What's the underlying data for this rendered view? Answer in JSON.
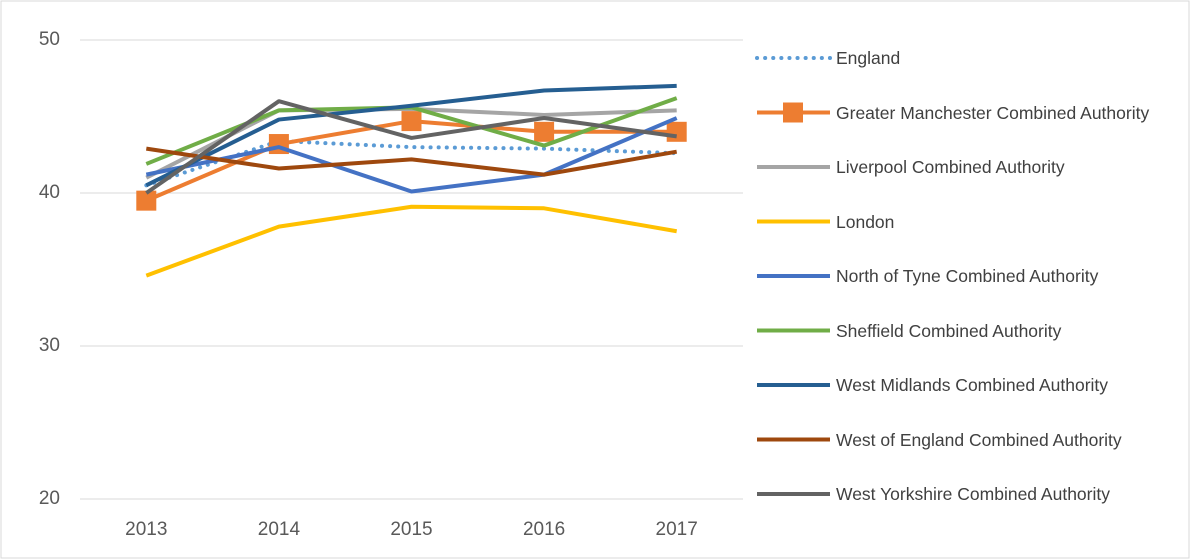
{
  "chart_data": {
    "type": "line",
    "categories": [
      "2013",
      "2014",
      "2015",
      "2016",
      "2017"
    ],
    "ylim": [
      20,
      50
    ],
    "yticks": [
      20,
      30,
      40,
      50
    ],
    "grid": true,
    "legend": "right",
    "series": [
      {
        "name": "England",
        "color": "#5b9bd5",
        "line_style": "dotted",
        "values": [
          40.5,
          43.4,
          43.0,
          42.9,
          42.6
        ]
      },
      {
        "name": "Greater Manchester Combined Authority",
        "color": "#ed7d31",
        "marker": "square",
        "values": [
          39.5,
          43.2,
          44.7,
          44.0,
          44.0
        ]
      },
      {
        "name": "Liverpool Combined Authority",
        "color": "#a5a5a5",
        "values": [
          41.0,
          45.4,
          45.5,
          45.1,
          45.4
        ]
      },
      {
        "name": "London",
        "color": "#ffc000",
        "values": [
          34.6,
          37.8,
          39.1,
          39.0,
          37.5
        ]
      },
      {
        "name": "North of Tyne Combined Authority",
        "color": "#4472c4",
        "values": [
          41.2,
          43.0,
          40.1,
          41.2,
          44.9
        ]
      },
      {
        "name": "Sheffield Combined Authority",
        "color": "#70ad47",
        "values": [
          41.9,
          45.4,
          45.6,
          43.1,
          46.2
        ]
      },
      {
        "name": "West Midlands Combined Authority",
        "color": "#255e91",
        "values": [
          40.5,
          44.8,
          45.7,
          46.7,
          47.0
        ]
      },
      {
        "name": "West of England Combined Authority",
        "color": "#9e480e",
        "values": [
          42.9,
          41.6,
          42.2,
          41.2,
          42.7
        ]
      },
      {
        "name": "West Yorkshire Combined Authority",
        "color": "#636363",
        "values": [
          40.0,
          46.0,
          43.6,
          44.9,
          43.7
        ]
      }
    ]
  }
}
